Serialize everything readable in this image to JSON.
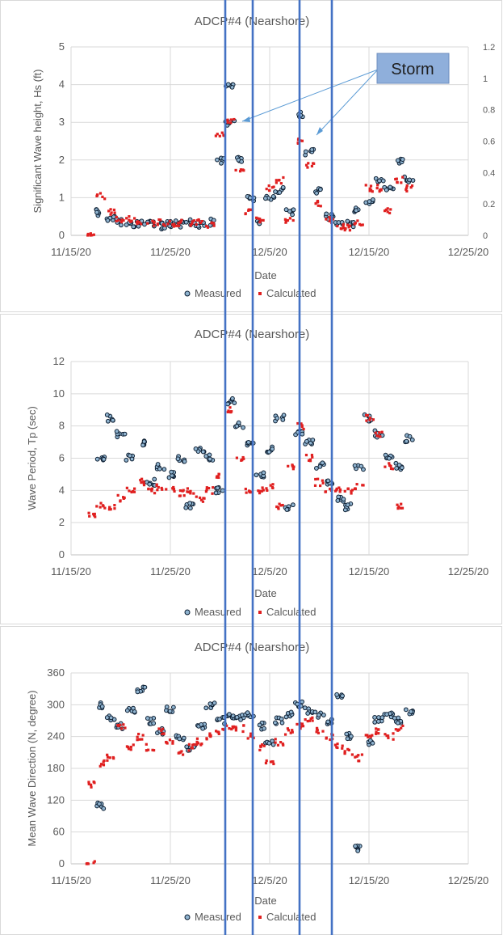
{
  "chart_data": [
    {
      "type": "scatter",
      "title": "ADCP#4 (Nearshore)",
      "xlabel": "Date",
      "ylabel": "Significant Wave height, Hs (ft)",
      "x_ticks": [
        "11/15/20",
        "11/25/20",
        "12/5/20",
        "12/15/20",
        "12/25/20"
      ],
      "y_ticks": [
        "0",
        "1",
        "2",
        "3",
        "4",
        "5"
      ],
      "y2_ticks": [
        "0",
        "0.2",
        "0.4",
        "0.6",
        "0.8",
        "1",
        "1.2"
      ],
      "ylim": [
        0,
        5
      ],
      "y2lim": [
        0,
        1.2
      ],
      "grid": true,
      "legend_position": "bottom",
      "annotation": "Storm",
      "series": [
        {
          "name": "Measured",
          "color": "#1f3f5f",
          "points": [
            [
              "11/18/20",
              0.6
            ],
            [
              "11/19/20",
              0.45
            ],
            [
              "11/20/20",
              0.35
            ],
            [
              "11/21/20",
              0.3
            ],
            [
              "11/22/20",
              0.3
            ],
            [
              "11/23/20",
              0.3
            ],
            [
              "11/24/20",
              0.25
            ],
            [
              "11/25/20",
              0.3
            ],
            [
              "11/26/20",
              0.3
            ],
            [
              "11/27/20",
              0.35
            ],
            [
              "11/28/20",
              0.3
            ],
            [
              "11/29/20",
              0.35
            ],
            [
              "11/30/20",
              2.0
            ],
            [
              "12/1/20",
              3.0
            ],
            [
              "12/1/20",
              4.0
            ],
            [
              "12/2/20",
              2.0
            ],
            [
              "12/3/20",
              1.0
            ],
            [
              "12/4/20",
              0.4
            ],
            [
              "12/5/20",
              1.0
            ],
            [
              "12/6/20",
              1.2
            ],
            [
              "12/7/20",
              0.6
            ],
            [
              "12/8/20",
              3.2
            ],
            [
              "12/9/20",
              2.2
            ],
            [
              "12/10/20",
              1.2
            ],
            [
              "12/11/20",
              0.5
            ],
            [
              "12/12/20",
              0.3
            ],
            [
              "12/13/20",
              0.3
            ],
            [
              "12/14/20",
              0.7
            ],
            [
              "12/15/20",
              0.9
            ],
            [
              "12/16/20",
              1.5
            ],
            [
              "12/17/20",
              1.2
            ],
            [
              "12/18/20",
              2.0
            ],
            [
              "12/19/20",
              1.5
            ]
          ]
        },
        {
          "name": "Calculated",
          "color": "#e02020",
          "axis": "secondary",
          "points": [
            [
              "11/17/20",
              0.0
            ],
            [
              "11/18/20",
              0.25
            ],
            [
              "11/19/20",
              0.15
            ],
            [
              "11/20/20",
              0.1
            ],
            [
              "11/21/20",
              0.1
            ],
            [
              "11/22/20",
              0.08
            ],
            [
              "11/23/20",
              0.08
            ],
            [
              "11/24/20",
              0.08
            ],
            [
              "11/25/20",
              0.07
            ],
            [
              "11/26/20",
              0.08
            ],
            [
              "11/27/20",
              0.08
            ],
            [
              "11/28/20",
              0.08
            ],
            [
              "11/29/20",
              0.07
            ],
            [
              "11/30/20",
              0.65
            ],
            [
              "12/1/20",
              0.72
            ],
            [
              "12/2/20",
              0.4
            ],
            [
              "12/3/20",
              0.15
            ],
            [
              "12/4/20",
              0.1
            ],
            [
              "12/5/20",
              0.3
            ],
            [
              "12/6/20",
              0.35
            ],
            [
              "12/7/20",
              0.1
            ],
            [
              "12/8/20",
              0.6
            ],
            [
              "12/9/20",
              0.45
            ],
            [
              "12/10/20",
              0.2
            ],
            [
              "12/11/20",
              0.1
            ],
            [
              "12/12/20",
              0.05
            ],
            [
              "12/13/20",
              0.05
            ],
            [
              "12/14/20",
              0.08
            ],
            [
              "12/15/20",
              0.3
            ],
            [
              "12/16/20",
              0.3
            ],
            [
              "12/17/20",
              0.15
            ],
            [
              "12/18/20",
              0.35
            ],
            [
              "12/19/20",
              0.3
            ]
          ]
        }
      ]
    },
    {
      "type": "scatter",
      "title": "ADCP#4 (Nearshore)",
      "xlabel": "Date",
      "ylabel": "Wave Period, Tp (sec)",
      "x_ticks": [
        "11/15/20",
        "11/25/20",
        "12/5/20",
        "12/15/20",
        "12/25/20"
      ],
      "y_ticks": [
        "0",
        "2",
        "4",
        "6",
        "8",
        "10",
        "12"
      ],
      "ylim": [
        0,
        12
      ],
      "grid": true,
      "legend_position": "bottom",
      "series": [
        {
          "name": "Measured",
          "color": "#1f3f5f",
          "points": [
            [
              "11/18/20",
              6.0
            ],
            [
              "11/19/20",
              8.5
            ],
            [
              "11/20/20",
              7.5
            ],
            [
              "11/21/20",
              6.0
            ],
            [
              "11/22/20",
              7.0
            ],
            [
              "11/23/20",
              4.5
            ],
            [
              "11/24/20",
              5.5
            ],
            [
              "11/25/20",
              5.0
            ],
            [
              "11/26/20",
              6.0
            ],
            [
              "11/27/20",
              3.0
            ],
            [
              "11/28/20",
              6.5
            ],
            [
              "11/29/20",
              6.0
            ],
            [
              "11/30/20",
              4.0
            ],
            [
              "12/1/20",
              9.5
            ],
            [
              "12/2/20",
              8.0
            ],
            [
              "12/3/20",
              7.0
            ],
            [
              "12/4/20",
              5.0
            ],
            [
              "12/5/20",
              6.5
            ],
            [
              "12/6/20",
              8.5
            ],
            [
              "12/7/20",
              3.0
            ],
            [
              "12/8/20",
              7.5
            ],
            [
              "12/9/20",
              7.0
            ],
            [
              "12/10/20",
              5.5
            ],
            [
              "12/11/20",
              4.5
            ],
            [
              "12/12/20",
              3.5
            ],
            [
              "12/13/20",
              3.0
            ],
            [
              "12/14/20",
              5.5
            ],
            [
              "12/15/20",
              8.5
            ],
            [
              "12/16/20",
              7.5
            ],
            [
              "12/17/20",
              6.0
            ],
            [
              "12/18/20",
              5.5
            ],
            [
              "12/19/20",
              7.2
            ]
          ]
        },
        {
          "name": "Calculated",
          "color": "#e02020",
          "points": [
            [
              "11/17/20",
              2.4
            ],
            [
              "11/18/20",
              3.0
            ],
            [
              "11/19/20",
              3.0
            ],
            [
              "11/20/20",
              3.5
            ],
            [
              "11/21/20",
              4.0
            ],
            [
              "11/22/20",
              4.5
            ],
            [
              "11/23/20",
              4.0
            ],
            [
              "11/24/20",
              4.2
            ],
            [
              "11/25/20",
              4.0
            ],
            [
              "11/26/20",
              3.8
            ],
            [
              "11/27/20",
              4.0
            ],
            [
              "11/28/20",
              3.5
            ],
            [
              "11/29/20",
              4.0
            ],
            [
              "11/30/20",
              5.0
            ],
            [
              "12/1/20",
              9.0
            ],
            [
              "12/2/20",
              6.0
            ],
            [
              "12/3/20",
              4.0
            ],
            [
              "12/4/20",
              4.0
            ],
            [
              "12/5/20",
              4.2
            ],
            [
              "12/6/20",
              3.0
            ],
            [
              "12/7/20",
              5.5
            ],
            [
              "12/8/20",
              8.0
            ],
            [
              "12/9/20",
              6.0
            ],
            [
              "12/10/20",
              4.5
            ],
            [
              "12/11/20",
              4.0
            ],
            [
              "12/12/20",
              4.0
            ],
            [
              "12/13/20",
              4.0
            ],
            [
              "12/14/20",
              4.2
            ],
            [
              "12/15/20",
              8.5
            ],
            [
              "12/16/20",
              7.5
            ],
            [
              "12/17/20",
              5.5
            ],
            [
              "12/18/20",
              3.0
            ]
          ]
        }
      ]
    },
    {
      "type": "scatter",
      "title": "ADCP#4 (Nearshore)",
      "xlabel": "Date",
      "ylabel": "Mean Wave Direction (N, degree)",
      "x_ticks": [
        "11/15/20",
        "11/25/20",
        "12/5/20",
        "12/15/20",
        "12/25/20"
      ],
      "y_ticks": [
        "0",
        "60",
        "120",
        "180",
        "240",
        "300",
        "360"
      ],
      "ylim": [
        0,
        360
      ],
      "grid": true,
      "legend_position": "bottom",
      "series": [
        {
          "name": "Measured",
          "color": "#1f3f5f",
          "points": [
            [
              "11/18/20",
              300
            ],
            [
              "11/18/20",
              110
            ],
            [
              "11/19/20",
              275
            ],
            [
              "11/20/20",
              260
            ],
            [
              "11/21/20",
              290
            ],
            [
              "11/22/20",
              330
            ],
            [
              "11/23/20",
              270
            ],
            [
              "11/24/20",
              250
            ],
            [
              "11/25/20",
              290
            ],
            [
              "11/26/20",
              240
            ],
            [
              "11/27/20",
              220
            ],
            [
              "11/28/20",
              260
            ],
            [
              "11/29/20",
              300
            ],
            [
              "11/30/20",
              270
            ],
            [
              "12/1/20",
              280
            ],
            [
              "12/2/20",
              275
            ],
            [
              "12/3/20",
              280
            ],
            [
              "12/4/20",
              260
            ],
            [
              "12/5/20",
              230
            ],
            [
              "12/6/20",
              270
            ],
            [
              "12/7/20",
              280
            ],
            [
              "12/8/20",
              300
            ],
            [
              "12/9/20",
              290
            ],
            [
              "12/10/20",
              280
            ],
            [
              "12/11/20",
              270
            ],
            [
              "12/12/20",
              320
            ],
            [
              "12/13/20",
              240
            ],
            [
              "12/14/20",
              30
            ],
            [
              "12/15/20",
              230
            ],
            [
              "12/16/20",
              270
            ],
            [
              "12/17/20",
              280
            ],
            [
              "12/18/20",
              270
            ],
            [
              "12/19/20",
              285
            ]
          ]
        },
        {
          "name": "Calculated",
          "color": "#e02020",
          "points": [
            [
              "11/17/20",
              0
            ],
            [
              "11/17/20",
              150
            ],
            [
              "11/18/20",
              190
            ],
            [
              "11/19/20",
              200
            ],
            [
              "11/20/20",
              260
            ],
            [
              "11/21/20",
              220
            ],
            [
              "11/22/20",
              240
            ],
            [
              "11/23/20",
              220
            ],
            [
              "11/24/20",
              250
            ],
            [
              "11/25/20",
              230
            ],
            [
              "11/26/20",
              210
            ],
            [
              "11/27/20",
              220
            ],
            [
              "11/28/20",
              230
            ],
            [
              "11/29/20",
              240
            ],
            [
              "11/30/20",
              250
            ],
            [
              "12/1/20",
              260
            ],
            [
              "12/2/20",
              255
            ],
            [
              "12/3/20",
              240
            ],
            [
              "12/4/20",
              220
            ],
            [
              "12/5/20",
              190
            ],
            [
              "12/6/20",
              230
            ],
            [
              "12/7/20",
              250
            ],
            [
              "12/8/20",
              260
            ],
            [
              "12/9/20",
              270
            ],
            [
              "12/10/20",
              250
            ],
            [
              "12/11/20",
              240
            ],
            [
              "12/12/20",
              220
            ],
            [
              "12/13/20",
              210
            ],
            [
              "12/14/20",
              200
            ],
            [
              "12/15/20",
              240
            ],
            [
              "12/16/20",
              250
            ],
            [
              "12/17/20",
              240
            ],
            [
              "12/18/20",
              255
            ]
          ]
        }
      ]
    }
  ]
}
